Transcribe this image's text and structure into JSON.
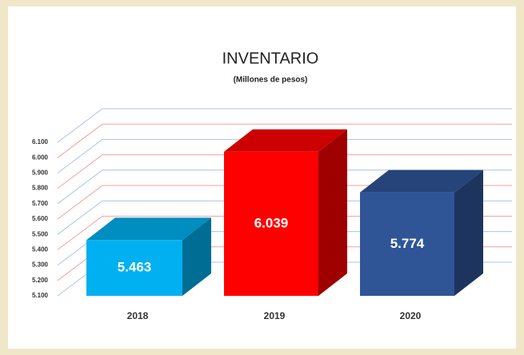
{
  "chart_data": {
    "type": "bar3d",
    "title": "INVENTARIO",
    "subtitle": "(Millones de pesos)",
    "categories": [
      "2018",
      "2019",
      "2020"
    ],
    "values": [
      5463,
      6039,
      5774
    ],
    "value_labels": [
      "5.463",
      "6.039",
      "5.774"
    ],
    "colors": [
      "#00b0f0",
      "#ff0000",
      "#2f5597"
    ],
    "ylim": [
      5100,
      6100
    ],
    "yticks": [
      {
        "value": 5100,
        "label": "5.100"
      },
      {
        "value": 5200,
        "label": "5.200"
      },
      {
        "value": 5300,
        "label": "5.300"
      },
      {
        "value": 5400,
        "label": "5.400"
      },
      {
        "value": 5500,
        "label": "5.500"
      },
      {
        "value": 5600,
        "label": "5.600"
      },
      {
        "value": 5700,
        "label": "5.700"
      },
      {
        "value": 5800,
        "label": "5.800"
      },
      {
        "value": 5900,
        "label": "5.900"
      },
      {
        "value": 6000,
        "label": "6.000"
      },
      {
        "value": 6100,
        "label": "6.100"
      }
    ],
    "grid": true
  }
}
